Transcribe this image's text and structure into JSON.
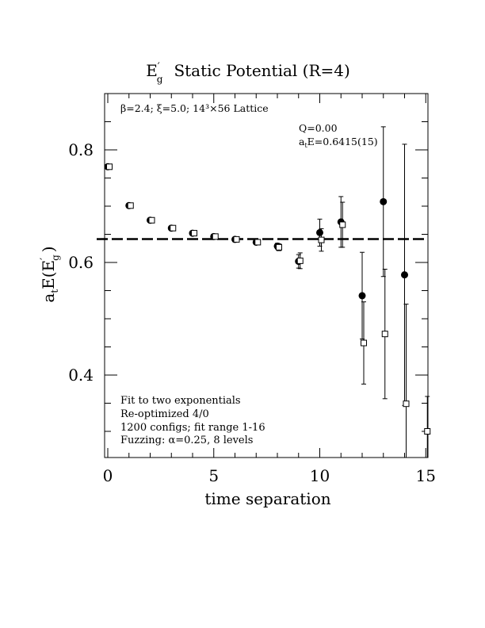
{
  "chart_data": {
    "type": "scatter",
    "title": {
      "main": "E",
      "sup": "′",
      "sub": "g",
      "rest": "Static Potential (R=4)"
    },
    "xlabel": "time separation",
    "ylabel": {
      "a": "a",
      "a_sub": "t",
      "E_open": "E(E",
      "sup": "′",
      "sub": "g",
      "close": ")"
    },
    "xlim": [
      0,
      15
    ],
    "ylim": [
      0.255,
      0.9
    ],
    "x_ticks": [
      0,
      5,
      10,
      15
    ],
    "x_tick_labels": [
      "0",
      "5",
      "10",
      "15"
    ],
    "y_ticks": [
      0.4,
      0.6,
      0.8
    ],
    "y_tick_labels": [
      "0.4",
      "0.6",
      "0.8"
    ],
    "annotations": {
      "lattice": "β=2.4; ξ=5.0; 14³×56 Lattice",
      "q": "Q=0.00",
      "fit_energy_a": "a",
      "fit_energy_sub": "t",
      "fit_energy_rest": "E=0.6415(15)",
      "notes": [
        "Fit to two exponentials",
        "Re-optimized 4/0",
        "1200 configs; fit range 1-16",
        "Fuzzing: α=0.25, 8 levels"
      ]
    },
    "fit_line": {
      "y": 0.6415
    },
    "series": [
      {
        "marker": "filled-circle",
        "points": [
          {
            "x": 0,
            "y": 0.77,
            "err": 0.003
          },
          {
            "x": 1,
            "y": 0.701,
            "err": 0.003
          },
          {
            "x": 2,
            "y": 0.675,
            "err": 0.003
          },
          {
            "x": 3,
            "y": 0.661,
            "err": 0.003
          },
          {
            "x": 4,
            "y": 0.652,
            "err": 0.003
          },
          {
            "x": 5,
            "y": 0.646,
            "err": 0.003
          },
          {
            "x": 6,
            "y": 0.641,
            "err": 0.003
          },
          {
            "x": 7,
            "y": 0.636,
            "err": 0.003
          },
          {
            "x": 8,
            "y": 0.629,
            "err": 0.005
          },
          {
            "x": 9,
            "y": 0.602,
            "err": 0.012
          },
          {
            "x": 10,
            "y": 0.653,
            "err": 0.024
          },
          {
            "x": 11,
            "y": 0.672,
            "err": 0.045
          },
          {
            "x": 12,
            "y": 0.541,
            "err": 0.077
          },
          {
            "x": 13,
            "y": 0.708,
            "err": 0.133
          },
          {
            "x": 14,
            "y": 0.578,
            "err": 0.232
          }
        ]
      },
      {
        "marker": "open-square",
        "points": [
          {
            "x": 0,
            "y": 0.77,
            "err": 0.003
          },
          {
            "x": 1,
            "y": 0.701,
            "err": 0.003
          },
          {
            "x": 2,
            "y": 0.675,
            "err": 0.003
          },
          {
            "x": 3,
            "y": 0.661,
            "err": 0.003
          },
          {
            "x": 4,
            "y": 0.652,
            "err": 0.003
          },
          {
            "x": 5,
            "y": 0.646,
            "err": 0.003
          },
          {
            "x": 6,
            "y": 0.641,
            "err": 0.003
          },
          {
            "x": 7,
            "y": 0.636,
            "err": 0.003
          },
          {
            "x": 8,
            "y": 0.627,
            "err": 0.006
          },
          {
            "x": 9,
            "y": 0.603,
            "err": 0.014
          },
          {
            "x": 10,
            "y": 0.64,
            "err": 0.02
          },
          {
            "x": 11,
            "y": 0.667,
            "err": 0.04
          },
          {
            "x": 12,
            "y": 0.457,
            "err": 0.073
          },
          {
            "x": 13,
            "y": 0.473,
            "err": 0.115
          },
          {
            "x": 14,
            "y": 0.349,
            "err": 0.177
          },
          {
            "x": 15,
            "y": 0.3,
            "err": 0.062
          }
        ]
      }
    ],
    "grid": false,
    "legend": "none"
  }
}
